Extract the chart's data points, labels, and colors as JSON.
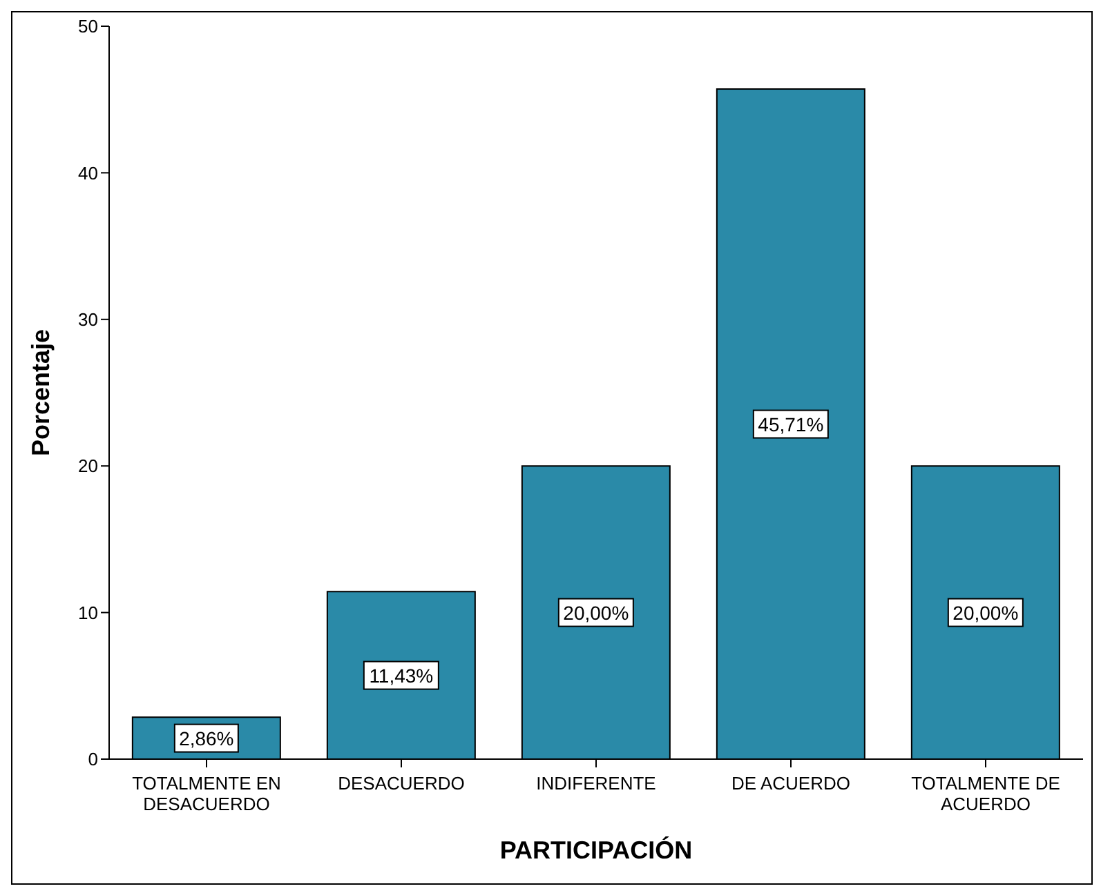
{
  "chart_data": {
    "type": "bar",
    "xlabel": "PARTICIPACIÓN",
    "ylabel": "Porcentaje",
    "categories": [
      "TOTALMENTE EN DESACUERDO",
      "DESACUERDO",
      "INDIFERENTE",
      "DE ACUERDO",
      "TOTALMENTE DE ACUERDO"
    ],
    "values": [
      2.86,
      11.43,
      20.0,
      45.71,
      20.0
    ],
    "value_labels": [
      "2,86%",
      "11,43%",
      "20,00%",
      "45,71%",
      "20,00%"
    ],
    "color": "#2a8aa8",
    "ylim": [
      0,
      50
    ],
    "yticks": [
      0,
      10,
      20,
      30,
      40,
      50
    ],
    "grid": false,
    "legend": false
  }
}
